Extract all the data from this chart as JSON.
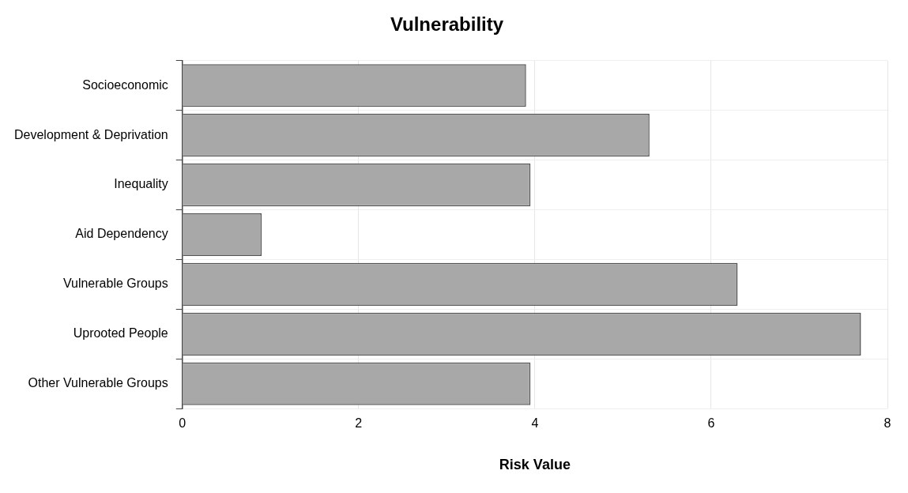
{
  "chart_data": {
    "type": "bar",
    "orientation": "horizontal",
    "title": "Vulnerability",
    "xlabel": "Risk Value",
    "categories": [
      "Socioeconomic",
      "Development & Deprivation",
      "Inequality",
      "Aid Dependency",
      "Vulnerable Groups",
      "Uprooted People",
      "Other Vulnerable Groups"
    ],
    "values": [
      3.9,
      5.3,
      3.95,
      0.9,
      6.3,
      7.7,
      3.95
    ],
    "color": "#a8a8a8",
    "xlim": [
      0,
      8
    ],
    "xticks": [
      0,
      2,
      4,
      6,
      8
    ],
    "grid": true,
    "legend": false
  }
}
